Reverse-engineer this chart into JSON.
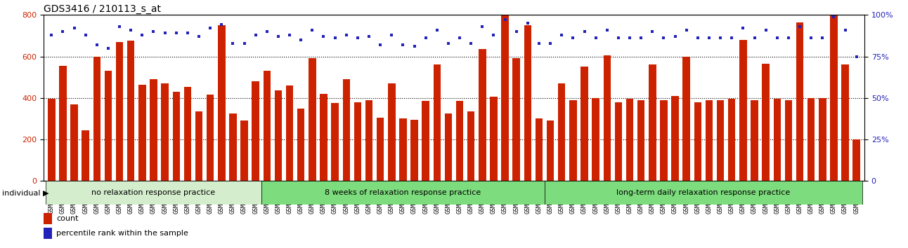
{
  "title": "GDS3416 / 210113_s_at",
  "categories": [
    "GSM253663",
    "GSM253664",
    "GSM253665",
    "GSM253666",
    "GSM253667",
    "GSM253668",
    "GSM253669",
    "GSM253670",
    "GSM253671",
    "GSM253672",
    "GSM253673",
    "GSM253674",
    "GSM253675",
    "GSM253676",
    "GSM253677",
    "GSM253678",
    "GSM253679",
    "GSM253680",
    "GSM253681",
    "GSM253682",
    "GSM253683",
    "GSM253684",
    "GSM253685",
    "GSM253686",
    "GSM253687",
    "GSM253688",
    "GSM253689",
    "GSM253690",
    "GSM253691",
    "GSM253692",
    "GSM253693",
    "GSM253694",
    "GSM253695",
    "GSM253696",
    "GSM253697",
    "GSM253698",
    "GSM253699",
    "GSM253700",
    "GSM253701",
    "GSM253702",
    "GSM253703",
    "GSM253704",
    "GSM253705",
    "GSM253706",
    "GSM253707",
    "GSM253708",
    "GSM253709",
    "GSM253710",
    "GSM253711",
    "GSM253712",
    "GSM253713",
    "GSM253714",
    "GSM253715",
    "GSM253716",
    "GSM253717",
    "GSM253718",
    "GSM253719",
    "GSM253720",
    "GSM253721",
    "GSM253722",
    "GSM253723",
    "GSM253724",
    "GSM253725",
    "GSM253726",
    "GSM253727",
    "GSM253728",
    "GSM253729",
    "GSM253730",
    "GSM253731",
    "GSM253732",
    "GSM253733",
    "GSM253734"
  ],
  "bar_values": [
    395,
    555,
    370,
    245,
    600,
    530,
    670,
    675,
    465,
    490,
    470,
    430,
    455,
    335,
    415,
    750,
    325,
    290,
    480,
    530,
    435,
    460,
    350,
    590,
    420,
    375,
    490,
    380,
    390,
    305,
    470,
    300,
    295,
    385,
    560,
    325,
    385,
    335,
    635,
    405,
    800,
    590,
    750,
    300,
    290,
    470,
    390,
    550,
    400,
    605,
    380,
    395,
    390,
    560,
    390,
    410,
    600,
    380,
    390,
    390,
    395,
    680,
    390,
    565,
    395,
    390,
    765,
    400,
    400,
    800,
    560,
    200
  ],
  "percentile_values": [
    88,
    90,
    92,
    88,
    82,
    80,
    93,
    91,
    88,
    90,
    89,
    89,
    89,
    87,
    92,
    94,
    83,
    83,
    88,
    90,
    87,
    88,
    85,
    91,
    87,
    86,
    88,
    86,
    87,
    82,
    88,
    82,
    81,
    86,
    91,
    83,
    86,
    83,
    93,
    88,
    97,
    90,
    95,
    83,
    83,
    88,
    86,
    90,
    86,
    91,
    86,
    86,
    86,
    90,
    86,
    87,
    91,
    86,
    86,
    86,
    86,
    92,
    86,
    91,
    86,
    86,
    93,
    86,
    86,
    99,
    91,
    75
  ],
  "group_boundaries": [
    0,
    19,
    44,
    72
  ],
  "group_labels": [
    "no relaxation response practice",
    "8 weeks of relaxation response practice",
    "long-term daily relaxation response practice"
  ],
  "group_colors": [
    "#d4edcc",
    "#7ddc7d",
    "#7ddc7d"
  ],
  "bar_color": "#cc2200",
  "dot_color": "#2222bb",
  "ylim_left": [
    0,
    800
  ],
  "ylim_right": [
    0,
    100
  ],
  "yticks_left": [
    0,
    200,
    400,
    600,
    800
  ],
  "yticks_right": [
    0,
    25,
    50,
    75,
    100
  ],
  "title_fontsize": 10,
  "xtick_fontsize": 6.0,
  "ytick_fontsize": 8,
  "bar_width": 0.65
}
